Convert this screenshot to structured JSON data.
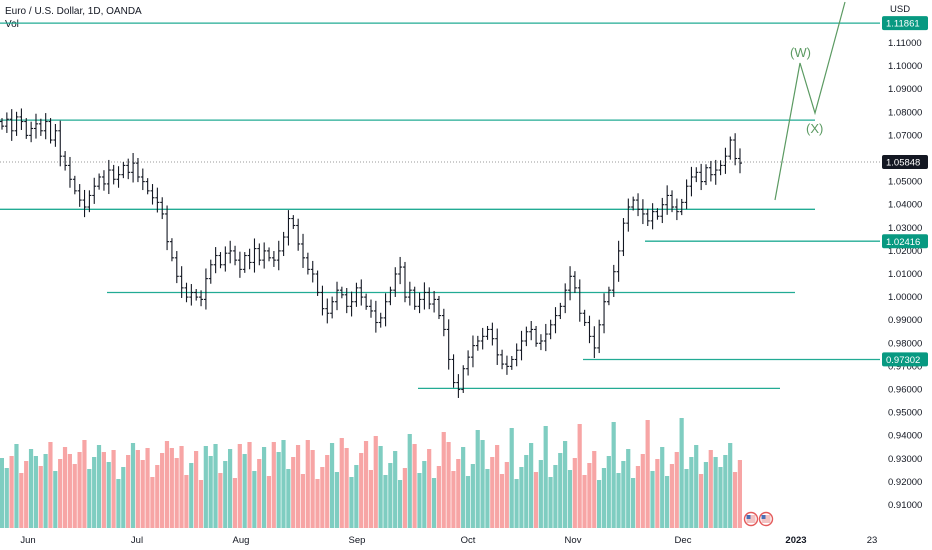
{
  "header": {
    "symbol_line": "Euro / U.S. Dollar, 1D, OANDA",
    "volume_label": "Vol",
    "currency": "USD"
  },
  "colors": {
    "bar": "#131722",
    "level_line": "#22ab94",
    "tag_green": "#089981",
    "tag_dark": "#131722",
    "vol_up": "#7fcdc1",
    "vol_down": "#f7a5a5",
    "projection": "#5b9a62",
    "last_price_dots": "#7a7a7a"
  },
  "chart_data": {
    "type": "ohlc",
    "y_axis": {
      "min": 0.9,
      "max": 1.125,
      "ticks": [
        "1.11000",
        "1.10000",
        "1.09000",
        "1.08000",
        "1.07000",
        "1.05000",
        "1.04000",
        "1.03000",
        "1.02000",
        "1.01000",
        "1.00000",
        "0.99000",
        "0.98000",
        "0.97000",
        "0.96000",
        "0.95000",
        "0.94000",
        "0.93000",
        "0.92000",
        "0.91000"
      ]
    },
    "x_axis": {
      "ticks": [
        "Jun",
        "Jul",
        "Aug",
        "Sep",
        "Oct",
        "Nov",
        "Dec",
        "2023",
        "23"
      ]
    },
    "price_tags": [
      {
        "label": "1.11861",
        "style": "green"
      },
      {
        "label": "1.05848",
        "style": "dark"
      },
      {
        "label": "1.02416",
        "style": "green"
      },
      {
        "label": "0.97302",
        "style": "green"
      }
    ],
    "horizontal_levels": [
      1.1186,
      1.0766,
      1.038,
      1.002,
      0.973,
      0.9605,
      1.0242
    ],
    "elliott_labels": [
      "(W)",
      "(X)"
    ],
    "closes": [
      1.074,
      1.077,
      1.072,
      1.078,
      1.076,
      1.07,
      1.073,
      1.075,
      1.072,
      1.076,
      1.068,
      1.072,
      1.061,
      1.057,
      1.051,
      1.046,
      1.042,
      1.039,
      1.044,
      1.048,
      1.052,
      1.049,
      1.055,
      1.051,
      1.053,
      1.057,
      1.054,
      1.058,
      1.052,
      1.05,
      1.046,
      1.043,
      1.041,
      1.036,
      1.024,
      1.017,
      1.009,
      1.004,
      1.0,
      1.002,
      1.0,
      0.999,
      1.008,
      1.014,
      1.018,
      1.014,
      1.019,
      1.02,
      1.016,
      1.012,
      1.018,
      1.015,
      1.021,
      1.016,
      1.02,
      1.017,
      1.016,
      1.02,
      1.026,
      1.034,
      1.031,
      1.023,
      1.017,
      1.012,
      1.01,
      1.002,
      0.995,
      0.993,
      0.998,
      1.003,
      1.001,
      0.996,
      0.998,
      1.004,
      1.0,
      0.996,
      0.994,
      0.989,
      0.991,
      0.998,
      1.003,
      1.01,
      1.013,
      1.0,
      1.003,
      0.996,
      0.999,
      1.002,
      0.997,
      0.999,
      0.992,
      0.986,
      0.973,
      0.963,
      0.96,
      0.969,
      0.974,
      0.979,
      0.981,
      0.983,
      0.986,
      0.982,
      0.975,
      0.971,
      0.97,
      0.973,
      0.977,
      0.981,
      0.985,
      0.986,
      0.98,
      0.981,
      0.984,
      0.988,
      0.992,
      0.996,
      1.003,
      1.009,
      1.004,
      0.993,
      0.989,
      0.983,
      0.978,
      0.988,
      0.998,
      1.003,
      1.011,
      1.02,
      1.032,
      1.039,
      1.042,
      1.038,
      1.036,
      1.033,
      1.037,
      1.035,
      1.04,
      1.044,
      1.039,
      1.037,
      1.041,
      1.048,
      1.052,
      1.054,
      1.05,
      1.056,
      1.053,
      1.055,
      1.057,
      1.061,
      1.068,
      1.06,
      1.058
    ]
  }
}
